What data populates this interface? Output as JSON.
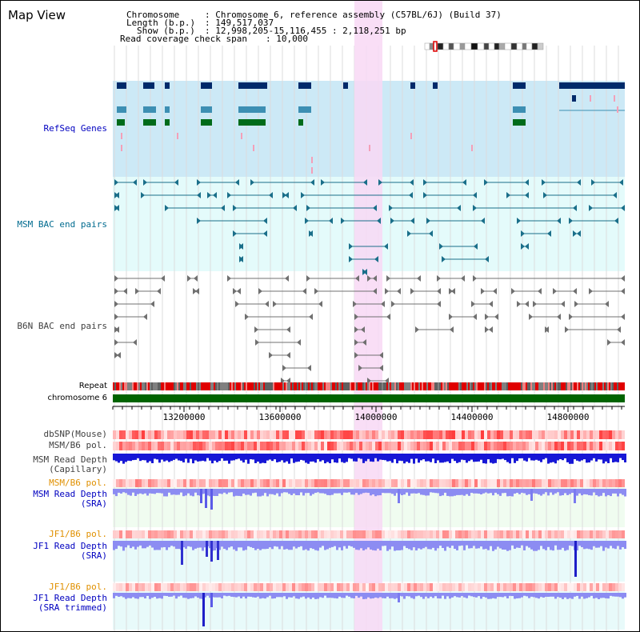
{
  "view_title": "Map View",
  "info": {
    "chromosome_key": "Chromosome",
    "chromosome_value": ": Chromosome 6, reference assembly (C57BL/6J) (Build 37)",
    "length_key": "Length (b.p.)",
    "length_value": ": 149,517,037",
    "show_key": "Show (b.p.)",
    "show_value": ": 12,998,205-15,116,455 : 2,118,251 bp",
    "coverage_key": "Read coverage check span",
    "coverage_value": ": 10,000"
  },
  "axis": {
    "ticks": [
      "13200000",
      "13600000",
      "14000000",
      "14400000",
      "14800000"
    ]
  },
  "tracks": [
    {
      "id": "refseq",
      "label": "RefSeq Genes",
      "color": "#0000c0",
      "bg": "#cce9f6"
    },
    {
      "id": "msm-bac",
      "label": "MSM BAC end pairs",
      "color": "#006b8f",
      "bg": "#e4fbfb"
    },
    {
      "id": "b6n-bac",
      "label": "B6N BAC end pairs",
      "color": "#404040",
      "bg": "#ffffff"
    },
    {
      "id": "repeat",
      "label": "Repeat",
      "color": "#000000"
    },
    {
      "id": "chromosome",
      "label": "chromosome 6",
      "color": "#000000"
    },
    {
      "id": "dbsnp",
      "label": "dbSNP(Mouse)",
      "color": "#404040"
    },
    {
      "id": "msm-b6-pol",
      "label": "MSM/B6 pol.",
      "color": "#404040"
    },
    {
      "id": "msm-depth-cap",
      "label": "MSM Read Depth\n(Capillary)",
      "color": "#404040"
    },
    {
      "id": "msm-b6-pol-2",
      "label": "MSM/B6 pol.",
      "color": "#e09000"
    },
    {
      "id": "msm-depth-sra",
      "label": "MSM Read Depth\n(SRA)",
      "color": "#0000c0"
    },
    {
      "id": "jf1-b6-pol",
      "label": "JF1/B6 pol.",
      "color": "#e09000"
    },
    {
      "id": "jf1-depth-sra",
      "label": "JF1 Read Depth\n(SRA)",
      "color": "#0000c0"
    },
    {
      "id": "jf1-b6-pol-2",
      "label": "JF1/B6 pol.",
      "color": "#e09000"
    },
    {
      "id": "jf1-depth-trim",
      "label": "JF1 Read Depth\n(SRA trimmed)",
      "color": "#0000c0"
    }
  ],
  "colors": {
    "highlight": "#f8d8f4",
    "chromosome_bar": "#006400",
    "refseq_dark": "#002a6a",
    "refseq_mid": "#3d8fb3",
    "refseq_green": "#006b1a",
    "msm_bac": "#1a6f8a",
    "b6n_bac": "#707070",
    "depth_capillary": "#1717d6",
    "depth_sra": "#8c8cf2"
  }
}
